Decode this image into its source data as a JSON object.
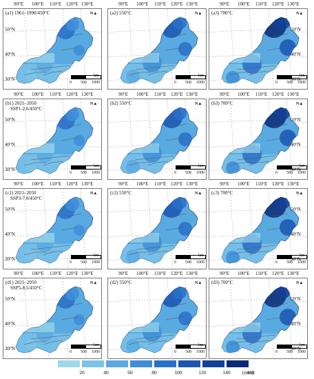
{
  "lon_labels": [
    "90°E",
    "100°E",
    "110°E",
    "120°E",
    "130°E"
  ],
  "lat_labels": [
    "50°N",
    "40°N",
    "30°N"
  ],
  "north": "N",
  "scale": {
    "ticks": [
      "0",
      "500",
      "1000"
    ],
    "unit": "km"
  },
  "panels": [
    {
      "label": "(a1) 1961–1990/450°C"
    },
    {
      "label": "(a2) 550°C"
    },
    {
      "label": "(a3) 700°C"
    },
    {
      "label": "(b1) 2021–2050\n    SSP1-2.6/450°C"
    },
    {
      "label": "(b2) 550°C"
    },
    {
      "label": "(b3) 700°C"
    },
    {
      "label": "(c1) 2021–2050\n    SSP3-7.0/450°C"
    },
    {
      "label": "(c2) 550°C"
    },
    {
      "label": "(c3) 700°C"
    },
    {
      "label": "(d1) 2021–2050\n    SSP5-8.5/450°C"
    },
    {
      "label": "(d2) 550°C"
    },
    {
      "label": "(d3) 700°C"
    }
  ],
  "legend": {
    "ticks": [
      "20",
      "40",
      "60",
      "80",
      "100",
      "120",
      "140",
      "160"
    ],
    "unit": "(mm)",
    "colors": [
      "#9ed8ea",
      "#7cc3e8",
      "#5aaae2",
      "#3d8ed8",
      "#2a70c8",
      "#1b56b0",
      "#143f94",
      "#0c2a74"
    ]
  }
}
